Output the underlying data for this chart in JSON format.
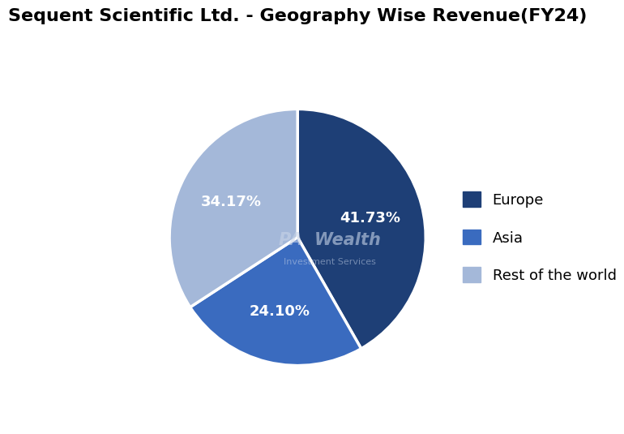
{
  "title": "Sequent Scientific Ltd. - Geography Wise Revenue(FY24)",
  "labels": [
    "Europe",
    "Asia",
    "Rest of the world"
  ],
  "values": [
    41.73,
    24.1,
    34.17
  ],
  "colors": [
    "#1e3f76",
    "#3a6bbf",
    "#a4b8d9"
  ],
  "pct_labels": [
    "41.73%",
    "24.10%",
    "34.17%"
  ],
  "legend_labels": [
    "Europe",
    "Asia",
    "Rest of the world"
  ],
  "title_fontsize": 16,
  "label_fontsize": 13,
  "legend_fontsize": 13,
  "background_color": "#ffffff",
  "start_angle": 90
}
